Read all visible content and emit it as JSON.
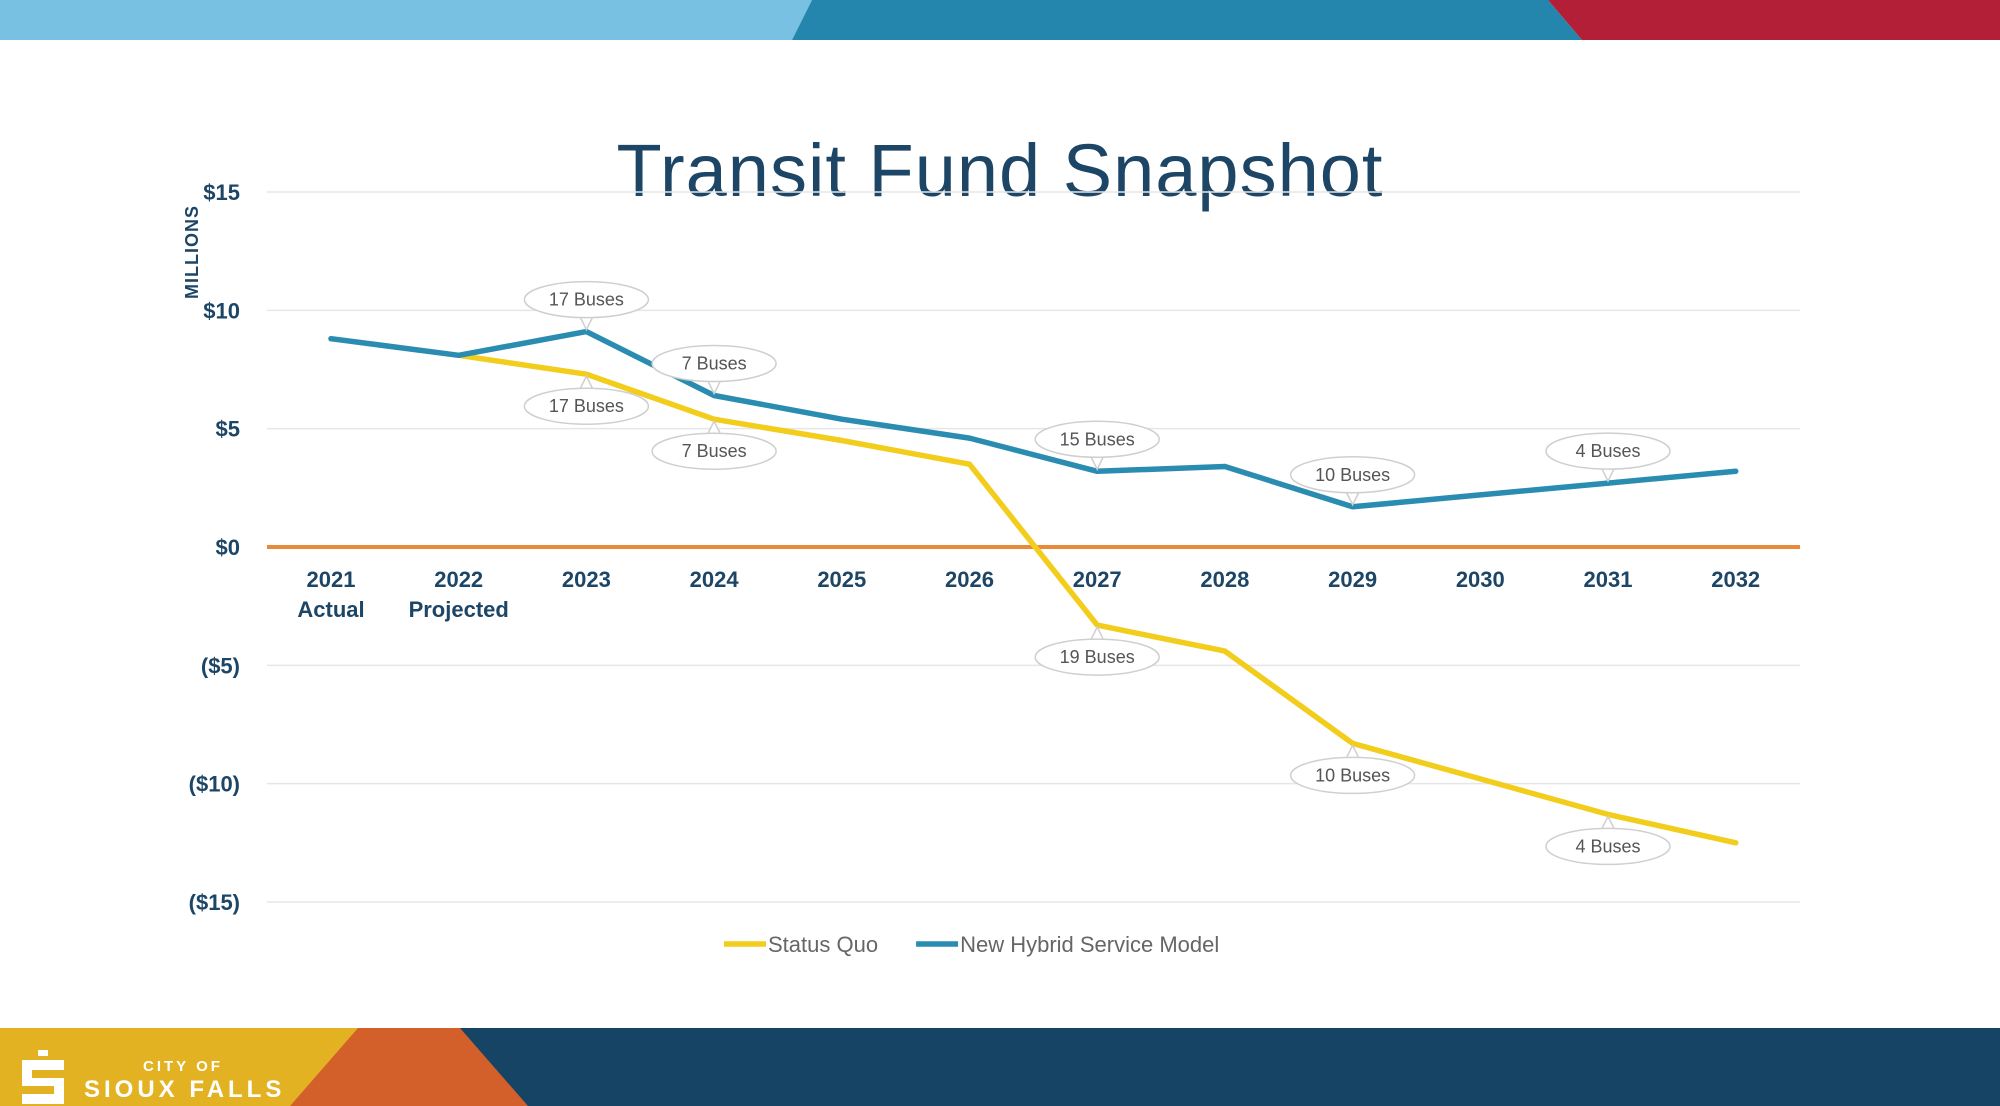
{
  "slide": {
    "title": "Transit Fund Snapshot",
    "logo_small": "CITY OF",
    "logo_big": "SIOUX FALLS"
  },
  "colors": {
    "status_quo": "#f2cd1c",
    "hybrid": "#2a8cb1",
    "zero_line": "#e98a3a",
    "axis_text": "#1d4566",
    "title": "#1d4566",
    "callout_text": "#555555",
    "banner_light_blue": "#79c1e3",
    "banner_mid_blue": "#2486ac",
    "banner_red": "#b41f38",
    "banner_yellow": "#e3b223",
    "banner_orange": "#d35f2b",
    "banner_navy": "#164465"
  },
  "chart_data": {
    "type": "line",
    "title": "Transit Fund Snapshot",
    "ylabel": "MILLIONS",
    "xlabel": "",
    "ylim": [
      -15,
      15
    ],
    "yticks": [
      {
        "value": 15,
        "label": "$15"
      },
      {
        "value": 10,
        "label": "$10"
      },
      {
        "value": 5,
        "label": "$5"
      },
      {
        "value": 0,
        "label": "$0"
      },
      {
        "value": -5,
        "label": "($5)"
      },
      {
        "value": -10,
        "label": "($10)"
      },
      {
        "value": -15,
        "label": "($15)"
      }
    ],
    "categories": [
      "2021",
      "2022",
      "2023",
      "2024",
      "2025",
      "2026",
      "2027",
      "2028",
      "2029",
      "2030",
      "2031",
      "2032"
    ],
    "category_sublabels": [
      "Actual",
      "Projected",
      "",
      "",
      "",
      "",
      "",
      "",
      "",
      "",
      "",
      ""
    ],
    "grid": true,
    "legend_position": "bottom",
    "series": [
      {
        "name": "Status Quo",
        "color": "#f2cd1c",
        "start_index": 1,
        "values": [
          null,
          8.1,
          7.3,
          5.4,
          4.5,
          3.5,
          -3.3,
          -4.4,
          -8.3,
          -9.8,
          -11.3,
          -12.5
        ]
      },
      {
        "name": "New Hybrid Service Model",
        "color": "#2a8cb1",
        "start_index": 0,
        "values": [
          8.8,
          8.1,
          9.1,
          6.4,
          5.4,
          4.6,
          3.2,
          3.4,
          1.7,
          2.2,
          2.7,
          3.2
        ]
      }
    ],
    "annotations": [
      {
        "series": "New Hybrid Service Model",
        "index": 2,
        "text": "17 Buses",
        "place": "above"
      },
      {
        "series": "New Hybrid Service Model",
        "index": 3,
        "text": "7 Buses",
        "place": "above"
      },
      {
        "series": "New Hybrid Service Model",
        "index": 6,
        "text": "15 Buses",
        "place": "above"
      },
      {
        "series": "New Hybrid Service Model",
        "index": 8,
        "text": "10 Buses",
        "place": "above"
      },
      {
        "series": "New Hybrid Service Model",
        "index": 10,
        "text": "4 Buses",
        "place": "above"
      },
      {
        "series": "Status Quo",
        "index": 2,
        "text": "17 Buses",
        "place": "below"
      },
      {
        "series": "Status Quo",
        "index": 3,
        "text": "7 Buses",
        "place": "below"
      },
      {
        "series": "Status Quo",
        "index": 6,
        "text": "19 Buses",
        "place": "below"
      },
      {
        "series": "Status Quo",
        "index": 8,
        "text": "10 Buses",
        "place": "below"
      },
      {
        "series": "Status Quo",
        "index": 10,
        "text": "4 Buses",
        "place": "below"
      }
    ]
  }
}
